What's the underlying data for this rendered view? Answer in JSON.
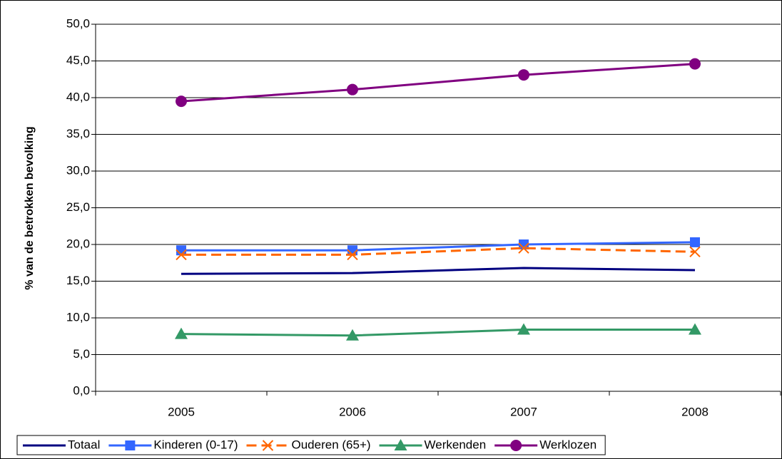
{
  "chart_data": {
    "type": "line",
    "y_label": "% van de betrokken bevolking",
    "categories": [
      "2005",
      "2006",
      "2007",
      "2008"
    ],
    "series": [
      {
        "name": "Totaal",
        "color": "#000080",
        "marker": "none",
        "dashed": false,
        "values": [
          16.0,
          16.1,
          16.8,
          16.5
        ]
      },
      {
        "name": "Kinderen (0-17)",
        "color": "#3366ff",
        "marker": "square",
        "dashed": false,
        "values": [
          19.2,
          19.2,
          20.0,
          20.3
        ]
      },
      {
        "name": "Ouderen (65+)",
        "color": "#ff6600",
        "marker": "x",
        "dashed": true,
        "values": [
          18.6,
          18.6,
          19.5,
          19.0
        ]
      },
      {
        "name": "Werkenden",
        "color": "#339966",
        "marker": "triangle",
        "dashed": false,
        "values": [
          7.8,
          7.6,
          8.4,
          8.4
        ]
      },
      {
        "name": "Werklozen",
        "color": "#800080",
        "marker": "circle",
        "dashed": false,
        "values": [
          39.5,
          41.1,
          43.1,
          44.6
        ]
      }
    ],
    "ylim": [
      0,
      50
    ],
    "yticks": [
      {
        "value": 0,
        "label": "0,0"
      },
      {
        "value": 5,
        "label": "5,0"
      },
      {
        "value": 10,
        "label": "10,0"
      },
      {
        "value": 15,
        "label": "15,0"
      },
      {
        "value": 20,
        "label": "20,0"
      },
      {
        "value": 25,
        "label": "25,0"
      },
      {
        "value": 30,
        "label": "30,0"
      },
      {
        "value": 35,
        "label": "35,0"
      },
      {
        "value": 40,
        "label": "40,0"
      },
      {
        "value": 45,
        "label": "45,0"
      },
      {
        "value": 50,
        "label": "50,0"
      }
    ],
    "grid": true,
    "legend": "bottom"
  }
}
